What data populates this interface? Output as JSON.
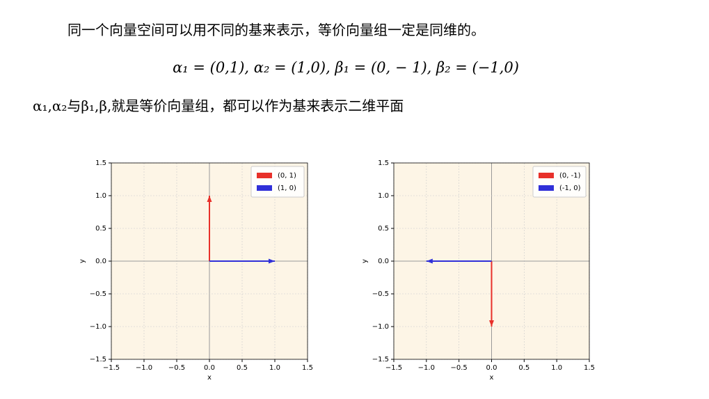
{
  "text": {
    "line1": "同一个向量空间可以用不同的基来表示，等价向量组一定是同维的。",
    "formula": "α₁ = (0,1), α₂ = (1,0), β₁ = (0, − 1), β₂ = (−1,0)",
    "line3": "α₁,α₂与β₁,β,就是等价向量组，都可以作为基来表示二维平面"
  },
  "chart_data": [
    {
      "type": "quiver",
      "xlabel": "x",
      "ylabel": "y",
      "xlim": [
        -1.5,
        1.5
      ],
      "ylim": [
        -1.5,
        1.5
      ],
      "xticks": [
        {
          "value": -1.5,
          "label": "−1.5"
        },
        {
          "value": -1.0,
          "label": "−1.0"
        },
        {
          "value": -0.5,
          "label": "−0.5"
        },
        {
          "value": 0,
          "label": "0.0"
        },
        0.5,
        {
          "value": 1,
          "label": "1.0"
        },
        1.5
      ],
      "yticks": [
        {
          "value": -1.5,
          "label": "−1.5"
        },
        {
          "value": -1.0,
          "label": "−1.0"
        },
        {
          "value": -0.5,
          "label": "−0.5"
        },
        {
          "value": 0,
          "label": "0.0"
        },
        0.5,
        {
          "value": 1,
          "label": "1.0"
        },
        1.5
      ],
      "grid": true,
      "background": "#fdf5e6",
      "legend": "upper right",
      "series": [
        {
          "name": "(0, 1)",
          "color": "#e8302a",
          "x": [
            0,
            0
          ],
          "values": [
            0,
            1
          ]
        },
        {
          "name": "(1, 0)",
          "color": "#3030d8",
          "x": [
            0,
            1
          ],
          "values": [
            0,
            0
          ]
        }
      ]
    },
    {
      "type": "quiver",
      "xlabel": "x",
      "ylabel": "y",
      "xlim": [
        -1.5,
        1.5
      ],
      "ylim": [
        -1.5,
        1.5
      ],
      "xticks": [
        {
          "value": -1.5,
          "label": "−1.5"
        },
        {
          "value": -1.0,
          "label": "−1.0"
        },
        {
          "value": -0.5,
          "label": "−0.5"
        },
        {
          "value": 0,
          "label": "0.0"
        },
        0.5,
        {
          "value": 1,
          "label": "1.0"
        },
        1.5
      ],
      "yticks": [
        {
          "value": -1.5,
          "label": "−1.5"
        },
        {
          "value": -1.0,
          "label": "−1.0"
        },
        {
          "value": -0.5,
          "label": "−0.5"
        },
        {
          "value": 0,
          "label": "0.0"
        },
        0.5,
        {
          "value": 1,
          "label": "1.0"
        },
        1.5
      ],
      "grid": true,
      "background": "#fdf5e6",
      "legend": "upper right",
      "series": [
        {
          "name": "(0, -1)",
          "color": "#e8302a",
          "x": [
            0,
            0
          ],
          "values": [
            0,
            -1
          ]
        },
        {
          "name": "(-1, 0)",
          "color": "#3030d8",
          "x": [
            0,
            -1
          ],
          "values": [
            0,
            0
          ]
        }
      ]
    }
  ]
}
